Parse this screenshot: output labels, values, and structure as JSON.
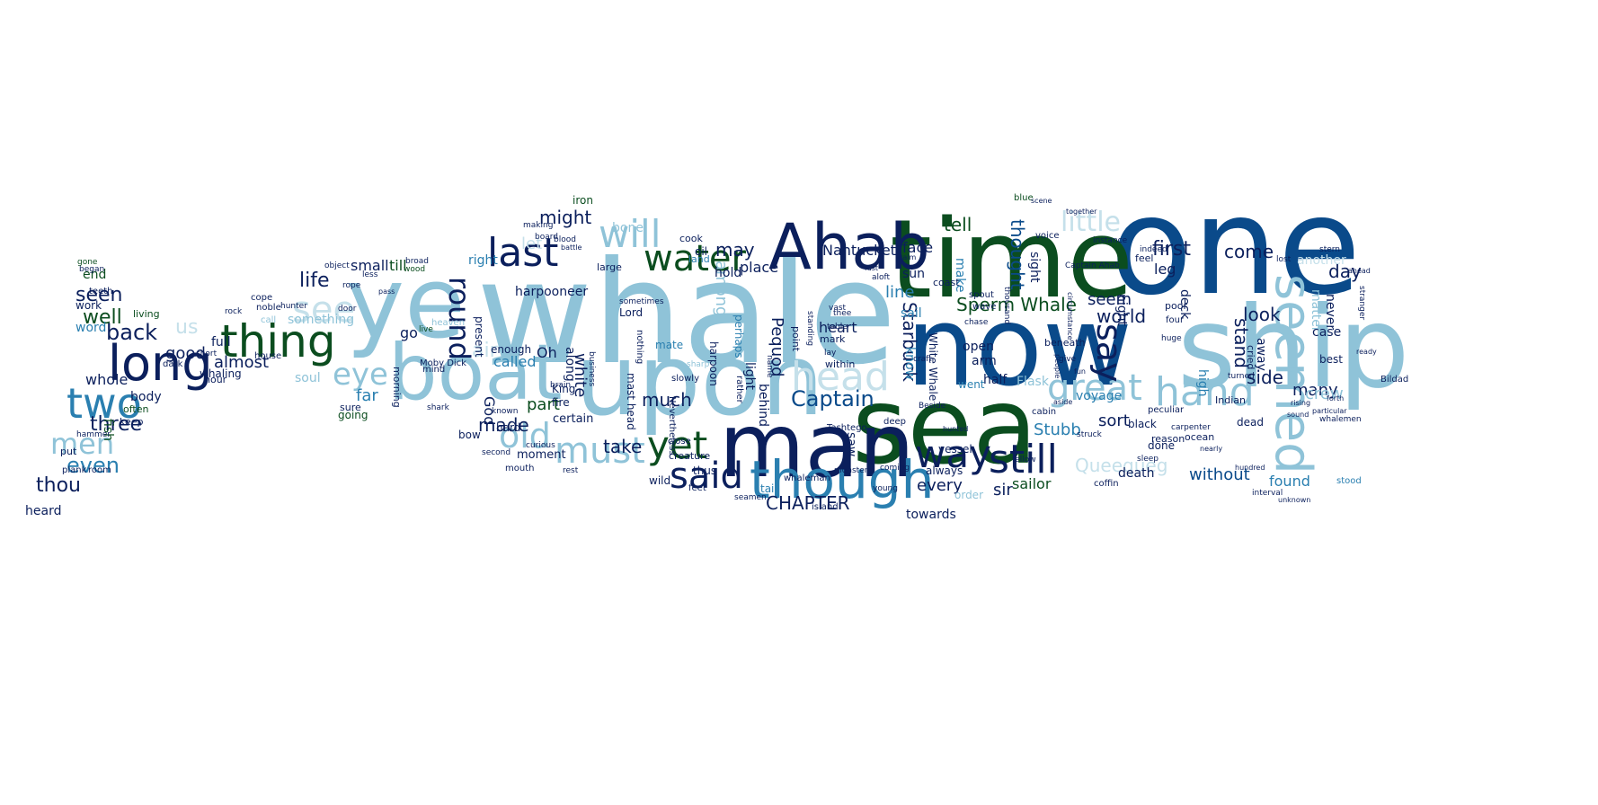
{
  "palette": {
    "dark_navy": "#0b1f5c",
    "dark_green": "#0b4d1f",
    "blue": "#2a7fb0",
    "light_blue": "#8fc3d8",
    "pale_blue": "#c5e0ea",
    "green": "#2e8b3a",
    "deep_blue": "#0a4a8a"
  },
  "words": [
    {
      "t": "whale"
    },
    {
      "t": "one"
    },
    {
      "t": "ship"
    },
    {
      "t": "ye"
    },
    {
      "t": "now"
    },
    {
      "t": "sea"
    },
    {
      "t": "man"
    },
    {
      "t": "time"
    },
    {
      "t": "upon"
    },
    {
      "t": "boat"
    },
    {
      "t": "Ahab"
    },
    {
      "t": "though"
    },
    {
      "t": "thing"
    },
    {
      "t": "long"
    },
    {
      "t": "two"
    },
    {
      "t": "said"
    },
    {
      "t": "yet"
    },
    {
      "t": "still"
    },
    {
      "t": "way"
    },
    {
      "t": "great"
    },
    {
      "t": "hand"
    },
    {
      "t": "seemed"
    },
    {
      "t": "last"
    },
    {
      "t": "water"
    },
    {
      "t": "will"
    },
    {
      "t": "see"
    },
    {
      "t": "eye"
    },
    {
      "t": "old"
    },
    {
      "t": "must"
    },
    {
      "t": "men"
    },
    {
      "t": "head"
    },
    {
      "t": "say"
    },
    {
      "t": "round"
    },
    {
      "t": "back"
    },
    {
      "t": "seen"
    },
    {
      "t": "well"
    },
    {
      "t": "even"
    },
    {
      "t": "thou"
    },
    {
      "t": "three"
    },
    {
      "t": "life"
    },
    {
      "t": "little"
    },
    {
      "t": "Captain"
    },
    {
      "t": "Starbuck"
    },
    {
      "t": "Sperm Whale"
    },
    {
      "t": "Queequeg"
    },
    {
      "t": "CHAPTER"
    },
    {
      "t": "Stubb"
    },
    {
      "t": "take"
    },
    {
      "t": "made"
    },
    {
      "t": "first"
    },
    {
      "t": "come"
    },
    {
      "t": "day"
    },
    {
      "t": "look"
    },
    {
      "t": "world"
    },
    {
      "t": "side"
    },
    {
      "t": "stand"
    },
    {
      "t": "many"
    },
    {
      "t": "much"
    },
    {
      "t": "might"
    },
    {
      "t": "may"
    },
    {
      "t": "tell"
    },
    {
      "t": "thought"
    },
    {
      "t": "seem"
    },
    {
      "t": "line"
    },
    {
      "t": "heart"
    },
    {
      "t": "part"
    },
    {
      "t": "good"
    },
    {
      "t": "almost"
    },
    {
      "t": "whole"
    },
    {
      "t": "far"
    },
    {
      "t": "every"
    },
    {
      "t": "sort"
    },
    {
      "t": "without"
    },
    {
      "t": "found"
    },
    {
      "t": "sir"
    },
    {
      "t": "sailor"
    },
    {
      "t": "white"
    },
    {
      "t": "Pequod"
    },
    {
      "t": "among"
    },
    {
      "t": "small"
    },
    {
      "t": "till"
    },
    {
      "t": "harpooneer"
    },
    {
      "t": "something"
    },
    {
      "t": "full"
    },
    {
      "t": "soul"
    },
    {
      "t": "go"
    },
    {
      "t": "called"
    },
    {
      "t": "Nantucket"
    },
    {
      "t": "face"
    },
    {
      "t": "place"
    },
    {
      "t": "hold"
    },
    {
      "t": "leg"
    },
    {
      "t": "another"
    },
    {
      "t": "never"
    },
    {
      "t": "away"
    },
    {
      "t": "matter"
    },
    {
      "t": "case"
    },
    {
      "t": "best"
    },
    {
      "t": "crew"
    },
    {
      "t": "night"
    },
    {
      "t": "deck"
    },
    {
      "t": "sight"
    },
    {
      "t": "Flask"
    },
    {
      "t": "half"
    },
    {
      "t": "open"
    },
    {
      "t": "arm"
    },
    {
      "t": "went"
    },
    {
      "t": "know"
    },
    {
      "t": "make"
    },
    {
      "t": "sun"
    },
    {
      "t": "sail"
    },
    {
      "t": "along"
    },
    {
      "t": "Oh"
    },
    {
      "t": "God"
    },
    {
      "t": "bone"
    },
    {
      "t": "light"
    },
    {
      "t": "behind"
    },
    {
      "t": "saw"
    },
    {
      "t": "death"
    },
    {
      "t": "towards"
    },
    {
      "t": "always"
    },
    {
      "t": "dead"
    },
    {
      "t": "black"
    },
    {
      "t": "voyage"
    },
    {
      "t": "high"
    },
    {
      "t": "end"
    },
    {
      "t": "work"
    },
    {
      "t": "word"
    },
    {
      "t": "body"
    },
    {
      "t": "fish"
    },
    {
      "t": "heard"
    },
    {
      "t": "done"
    },
    {
      "t": "order"
    },
    {
      "t": "us"
    },
    {
      "t": "air"
    },
    {
      "t": "let"
    },
    {
      "t": "right"
    },
    {
      "t": "whaling"
    },
    {
      "t": "living"
    },
    {
      "t": "hour"
    },
    {
      "t": "perhaps"
    },
    {
      "t": "moment"
    },
    {
      "t": "certain"
    },
    {
      "t": "present"
    },
    {
      "t": "Lord"
    },
    {
      "t": "harpoon"
    },
    {
      "t": "Moby Dick"
    },
    {
      "t": "mast head"
    },
    {
      "t": "King"
    },
    {
      "t": "fire"
    },
    {
      "t": "vessel"
    },
    {
      "t": "White Whale"
    },
    {
      "t": "fell"
    },
    {
      "t": "hard"
    },
    {
      "t": "often"
    },
    {
      "t": "keep"
    },
    {
      "t": "bow"
    },
    {
      "t": "enough"
    },
    {
      "t": "morning"
    },
    {
      "t": "going"
    },
    {
      "t": "sure"
    },
    {
      "t": "large"
    },
    {
      "t": "mate"
    },
    {
      "t": "thus"
    },
    {
      "t": "iron"
    },
    {
      "t": "oil"
    },
    {
      "t": "cook"
    },
    {
      "t": "land"
    },
    {
      "t": "within"
    },
    {
      "t": "mark"
    },
    {
      "t": "beneath"
    },
    {
      "t": "point"
    },
    {
      "t": "Tashtego"
    },
    {
      "t": "coast"
    },
    {
      "t": "poor"
    },
    {
      "t": "four"
    },
    {
      "t": "cried"
    },
    {
      "t": "ocean"
    },
    {
      "t": "reason"
    },
    {
      "t": "Indian"
    },
    {
      "t": "Captain Ahab"
    },
    {
      "t": "Bildad"
    },
    {
      "t": "lost"
    },
    {
      "t": "feel"
    },
    {
      "t": "stood"
    },
    {
      "t": "whalemen"
    },
    {
      "t": "peculiar"
    },
    {
      "t": "carpenter"
    },
    {
      "t": "coffin"
    },
    {
      "t": "creature"
    },
    {
      "t": "feet"
    },
    {
      "t": "wild"
    },
    {
      "t": "tail"
    },
    {
      "t": "whaleman"
    },
    {
      "t": "island"
    },
    {
      "t": "seamen"
    },
    {
      "t": "teeth"
    },
    {
      "t": "began"
    },
    {
      "t": "gone"
    },
    {
      "t": "put"
    },
    {
      "t": "room"
    },
    {
      "t": "plank"
    },
    {
      "t": "hammer"
    },
    {
      "t": "noble"
    },
    {
      "t": "hunter"
    },
    {
      "t": "house"
    },
    {
      "t": "rock"
    },
    {
      "t": "call"
    },
    {
      "t": "cope"
    },
    {
      "t": "short"
    },
    {
      "t": "dark"
    },
    {
      "t": "broad"
    },
    {
      "t": "wood"
    },
    {
      "t": "object"
    },
    {
      "t": "less"
    },
    {
      "t": "rope"
    },
    {
      "t": "door"
    },
    {
      "t": "stranger"
    },
    {
      "t": "ahead"
    },
    {
      "t": "ready"
    },
    {
      "t": "blue"
    },
    {
      "t": "scene"
    },
    {
      "t": "together"
    },
    {
      "t": "instance"
    },
    {
      "t": "indeed"
    },
    {
      "t": "aloft"
    },
    {
      "t": "fast"
    },
    {
      "t": "calm"
    },
    {
      "t": "cabin"
    },
    {
      "t": "struck"
    },
    {
      "t": "fellow"
    },
    {
      "t": "mind"
    },
    {
      "t": "stern"
    },
    {
      "t": "turned"
    },
    {
      "t": "voice"
    },
    {
      "t": "wave"
    },
    {
      "t": "chase"
    },
    {
      "t": "spout"
    },
    {
      "t": "thousand"
    },
    {
      "t": "huge"
    },
    {
      "t": "craft"
    },
    {
      "t": "sleep"
    },
    {
      "t": "nearly"
    },
    {
      "t": "hundred"
    },
    {
      "t": "interval"
    },
    {
      "t": "unknown"
    },
    {
      "t": "rather"
    },
    {
      "t": "name"
    },
    {
      "t": "whose"
    },
    {
      "t": "young"
    },
    {
      "t": "coming"
    },
    {
      "t": "deep"
    },
    {
      "t": "close"
    },
    {
      "t": "slowly"
    },
    {
      "t": "sharp"
    },
    {
      "t": "Nevertheless"
    },
    {
      "t": "standing"
    },
    {
      "t": "vast"
    },
    {
      "t": "thee"
    },
    {
      "t": "table"
    },
    {
      "t": "lay"
    },
    {
      "t": "sometimes"
    },
    {
      "t": "nothing"
    },
    {
      "t": "shark"
    },
    {
      "t": "mouth"
    },
    {
      "t": "second"
    },
    {
      "t": "heaven"
    },
    {
      "t": "pass"
    },
    {
      "t": "live"
    },
    {
      "t": "known"
    },
    {
      "t": "curious"
    },
    {
      "t": "rest"
    },
    {
      "t": "business"
    },
    {
      "t": "brain"
    },
    {
      "t": "board"
    },
    {
      "t": "making"
    },
    {
      "t": "blood"
    },
    {
      "t": "battle"
    },
    {
      "t": "hunted"
    },
    {
      "t": "monster"
    },
    {
      "t": "Beside"
    },
    {
      "t": "aside"
    },
    {
      "t": "people"
    },
    {
      "t": "circumstance"
    },
    {
      "t": "give"
    },
    {
      "t": "fun"
    },
    {
      "t": "particular"
    },
    {
      "t": "forth"
    },
    {
      "t": "rising"
    },
    {
      "t": "sound"
    }
  ]
}
